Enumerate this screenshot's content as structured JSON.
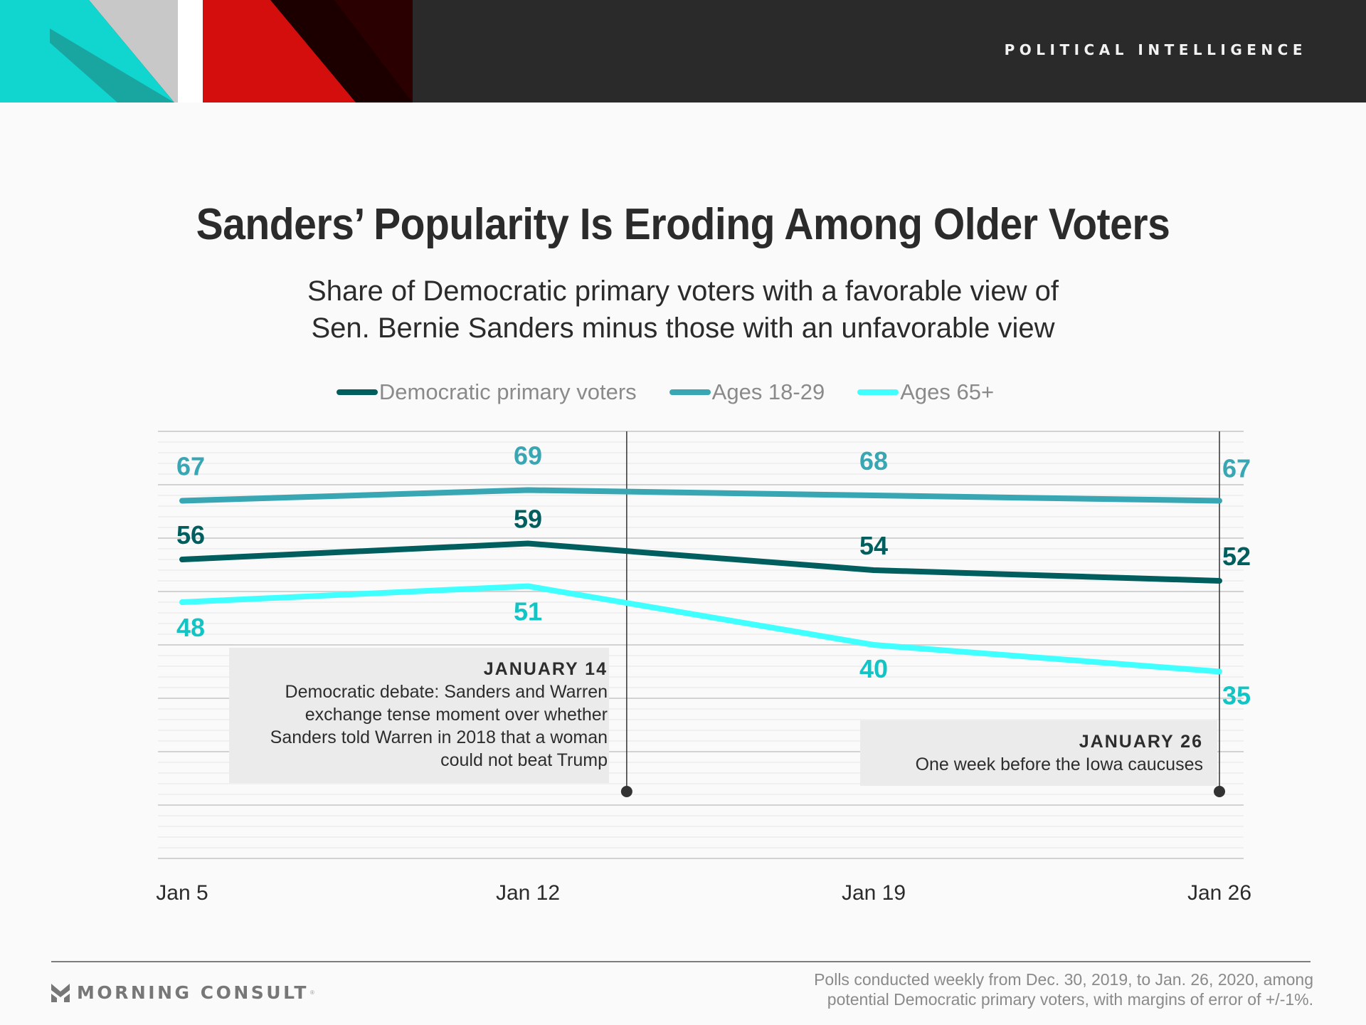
{
  "banner": {
    "label": "POLITICAL INTELLIGENCE"
  },
  "title": "Sanders’ Popularity Is Eroding Among Older Voters",
  "subtitle_lines": [
    "Share of Democratic primary voters with a favorable view of",
    "Sen. Bernie Sanders minus those with an unfavorable view"
  ],
  "legend": [
    {
      "label": "Democratic primary voters",
      "color": "#005e5e"
    },
    {
      "label": "Ages 18-29",
      "color": "#39a6b3"
    },
    {
      "label": "Ages 65+",
      "color": "#40ffff"
    }
  ],
  "annotations": [
    {
      "date_label": "JANUARY 14",
      "lines": [
        "Democratic debate: Sanders and Warren",
        "exchange tense moment over whether",
        "Sanders told Warren in 2018 that a woman",
        "could not beat Trump"
      ],
      "x_position_days_from_jan5": 9
    },
    {
      "date_label": "JANUARY 26",
      "lines": [
        "One week before the Iowa caucuses"
      ],
      "x_position_days_from_jan5": 21
    }
  ],
  "footer": {
    "logo_text": "MORNING CONSULT",
    "note_lines": [
      "Polls conducted weekly from Dec. 30, 2019, to Jan. 26, 2020, among",
      "potential Democratic primary voters, with margins of error of +/-1%."
    ]
  },
  "chart_data": {
    "type": "line",
    "title": "Sanders’ Popularity Is Eroding Among Older Voters",
    "subtitle": "Share of Democratic primary voters with a favorable view of Sen. Bernie Sanders minus those with an unfavorable view",
    "xlabel": "",
    "ylabel": "",
    "categories": [
      "Jan 5",
      "Jan 12",
      "Jan 19",
      "Jan 26"
    ],
    "ylim": [
      0,
      80
    ],
    "y_major_step": 10,
    "y_minor_step": 2,
    "grid": true,
    "legend_position": "top-center",
    "series": [
      {
        "name": "Ages 18-29",
        "color": "#39a6b3",
        "label_color": "#39a6b3",
        "values": [
          67,
          69,
          68,
          67
        ]
      },
      {
        "name": "Democratic primary voters",
        "color": "#005e5e",
        "label_color": "#005e5e",
        "values": [
          56,
          59,
          54,
          52
        ]
      },
      {
        "name": "Ages 65+",
        "color": "#40ffff",
        "label_color": "#12c4c4",
        "values": [
          48,
          51,
          40,
          35
        ]
      }
    ]
  }
}
